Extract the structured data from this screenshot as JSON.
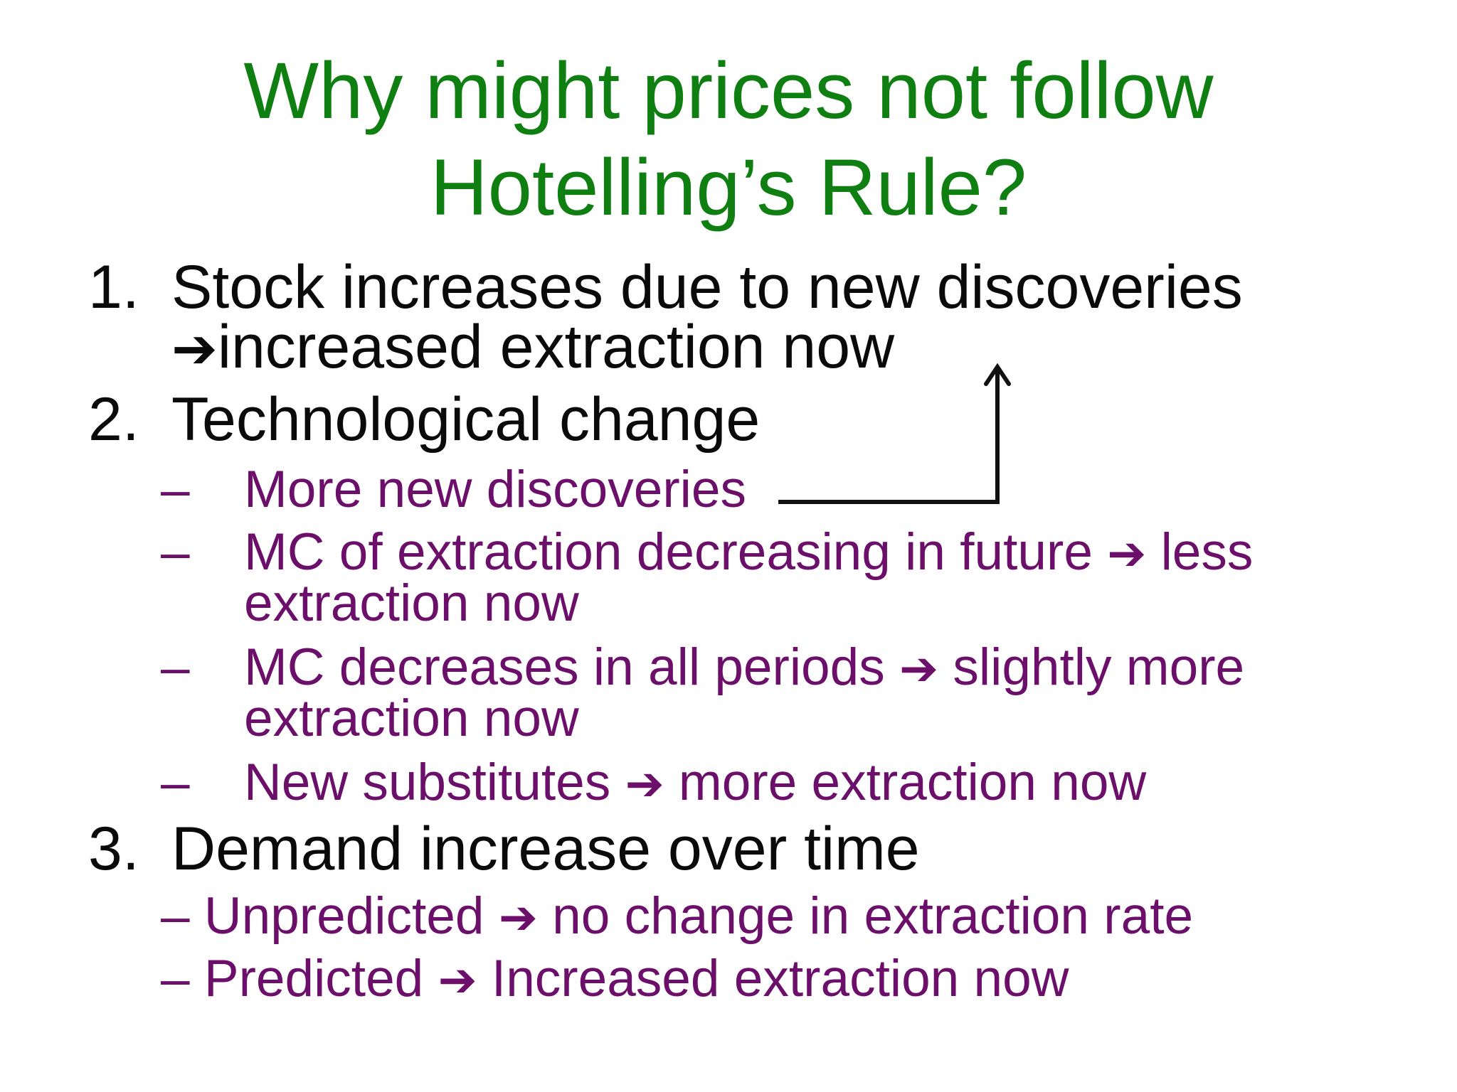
{
  "slide": {
    "title_line1": "Why might prices not follow",
    "title_line2": "Hotelling’s Rule?",
    "item1": {
      "number": "1.",
      "line1": "Stock increases due to new discoveries",
      "arrow": "➔",
      "line2": "increased extraction now"
    },
    "item2": {
      "number": "2.",
      "text": "Technological change",
      "subs": [
        {
          "dash": "–",
          "text": "More new discoveries"
        },
        {
          "dash": "–",
          "pre": "MC of extraction decreasing in future",
          "arrow": "➔",
          "post": "less",
          "line2": "extraction now"
        },
        {
          "dash": "–",
          "pre": "MC decreases in all periods",
          "arrow": "➔",
          "post": "slightly more",
          "line2": "extraction now"
        },
        {
          "dash": "–",
          "pre": "New substitutes",
          "arrow": "➔",
          "post": "more extraction now"
        }
      ]
    },
    "item3": {
      "number": "3.",
      "text": "Demand increase over time",
      "subs": [
        {
          "pre": "– Unpredicted",
          "arrow": "➔",
          "post": "no change in extraction rate"
        },
        {
          "pre": "– Predicted",
          "arrow": "➔",
          "post": "Increased extraction now"
        }
      ]
    }
  }
}
